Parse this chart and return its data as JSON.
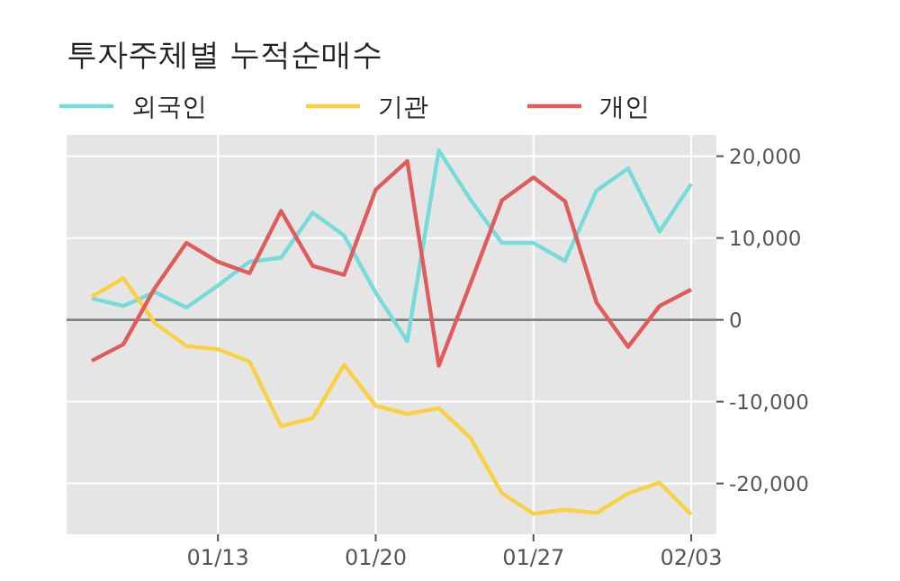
{
  "chart_data": {
    "type": "line",
    "title": "투자주체별 누적순매수",
    "categories": [
      null,
      null,
      null,
      null,
      "01/13",
      null,
      null,
      null,
      null,
      "01/20",
      null,
      null,
      null,
      null,
      "01/27",
      null,
      null,
      null,
      null,
      "02/03"
    ],
    "series": [
      {
        "name": "외국인",
        "color": "#76dcd9",
        "values": [
          2600,
          1700,
          3400,
          1500,
          4200,
          7100,
          7600,
          13100,
          10300,
          3300,
          -2600,
          20700,
          14700,
          9400,
          9400,
          7200,
          15800,
          18500,
          10800,
          16600
        ]
      },
      {
        "name": "기관",
        "color": "#f9d142",
        "values": [
          2800,
          5100,
          -400,
          -3200,
          -3600,
          -5100,
          -13000,
          -12000,
          -5500,
          -10500,
          -11500,
          -10800,
          -14400,
          -21200,
          -23700,
          -23200,
          -23600,
          -21200,
          -19900,
          -23800
        ]
      },
      {
        "name": "개인",
        "color": "#e05c5c",
        "values": [
          -5000,
          -3000,
          3900,
          9400,
          7100,
          5700,
          13300,
          6600,
          5500,
          15900,
          19400,
          -5600,
          4400,
          14600,
          17400,
          14500,
          2100,
          -3300,
          1700,
          3700
        ]
      }
    ],
    "ylim": [
      -26200,
      22600
    ],
    "yticks": [
      {
        "value": -20000,
        "label": "-20,000"
      },
      {
        "value": -10000,
        "label": "-10,000"
      },
      0,
      {
        "value": 10000,
        "label": "10,000"
      },
      {
        "value": 20000,
        "label": "20,000"
      }
    ],
    "ref_lines": [
      {
        "axis": "y",
        "value": 0,
        "color": "#808080"
      }
    ],
    "grid": true,
    "legend": "top left"
  }
}
